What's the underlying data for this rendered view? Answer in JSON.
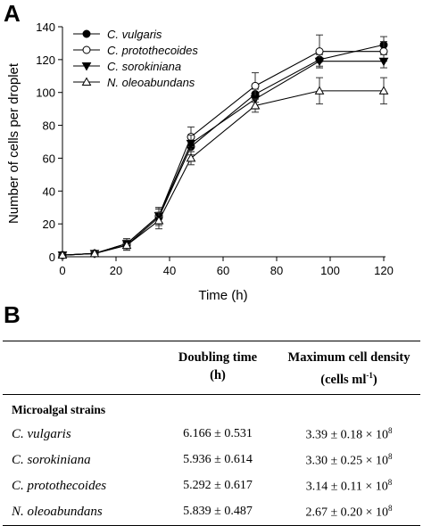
{
  "panel_a_letter": "A",
  "panel_b_letter": "B",
  "chart_data": {
    "type": "line",
    "title": "",
    "xlabel": "Time (h)",
    "ylabel": "Number of cells per droplet",
    "xlim": [
      0,
      120
    ],
    "ylim": [
      0,
      140
    ],
    "xticks": [
      0,
      20,
      40,
      60,
      80,
      100,
      120
    ],
    "yticks": [
      0,
      20,
      40,
      60,
      80,
      100,
      120,
      140
    ],
    "grid": false,
    "legend": "top-left",
    "x": [
      0,
      12,
      24,
      36,
      48,
      72,
      96,
      120
    ],
    "series": [
      {
        "name": "C. vulgaris",
        "marker": "filled-circle",
        "values": [
          1,
          2,
          7,
          24,
          67,
          99,
          120,
          129
        ],
        "error": [
          1,
          1,
          3,
          5,
          5,
          5,
          4,
          5
        ]
      },
      {
        "name": "C. protothecoides",
        "marker": "open-circle",
        "values": [
          1,
          2,
          8,
          25,
          73,
          104,
          125,
          125
        ],
        "error": [
          1,
          1,
          3,
          5,
          6,
          8,
          10,
          6
        ]
      },
      {
        "name": "C. sorokiniana",
        "marker": "filled-triangle-down",
        "values": [
          1,
          2,
          8,
          25,
          69,
          96,
          119,
          119
        ],
        "error": [
          1,
          1,
          3,
          5,
          5,
          6,
          4,
          4
        ]
      },
      {
        "name": "N. oleoabundans",
        "marker": "open-triangle-up",
        "values": [
          1,
          2,
          7,
          22,
          60,
          92,
          101,
          101
        ],
        "error": [
          1,
          1,
          3,
          5,
          4,
          4,
          8,
          8
        ]
      }
    ]
  },
  "table": {
    "col_headers": [
      {
        "line1": "Doubling time",
        "line2": "(h)"
      },
      {
        "line1": "Maximum cell density",
        "line2_pre": "(cells ml",
        "line2_sup": "-1",
        "line2_post": ")"
      }
    ],
    "section_label": "Microalgal strains",
    "rows": [
      {
        "strain": "C. vulgaris",
        "doubling": "6.166 ± 0.531",
        "density": "3.39 ± 0.18 × 10",
        "exp": "8"
      },
      {
        "strain": "C. sorokiniana",
        "doubling": "5.936 ± 0.614",
        "density": "3.30 ± 0.25 × 10",
        "exp": "8"
      },
      {
        "strain": "C. protothecoides",
        "doubling": "5.292 ± 0.617",
        "density": "3.14 ± 0.11 × 10",
        "exp": "8"
      },
      {
        "strain": "N. oleoabundans",
        "doubling": "5.839 ± 0.487",
        "density": "2.67 ± 0.20 × 10",
        "exp": "8"
      }
    ]
  }
}
